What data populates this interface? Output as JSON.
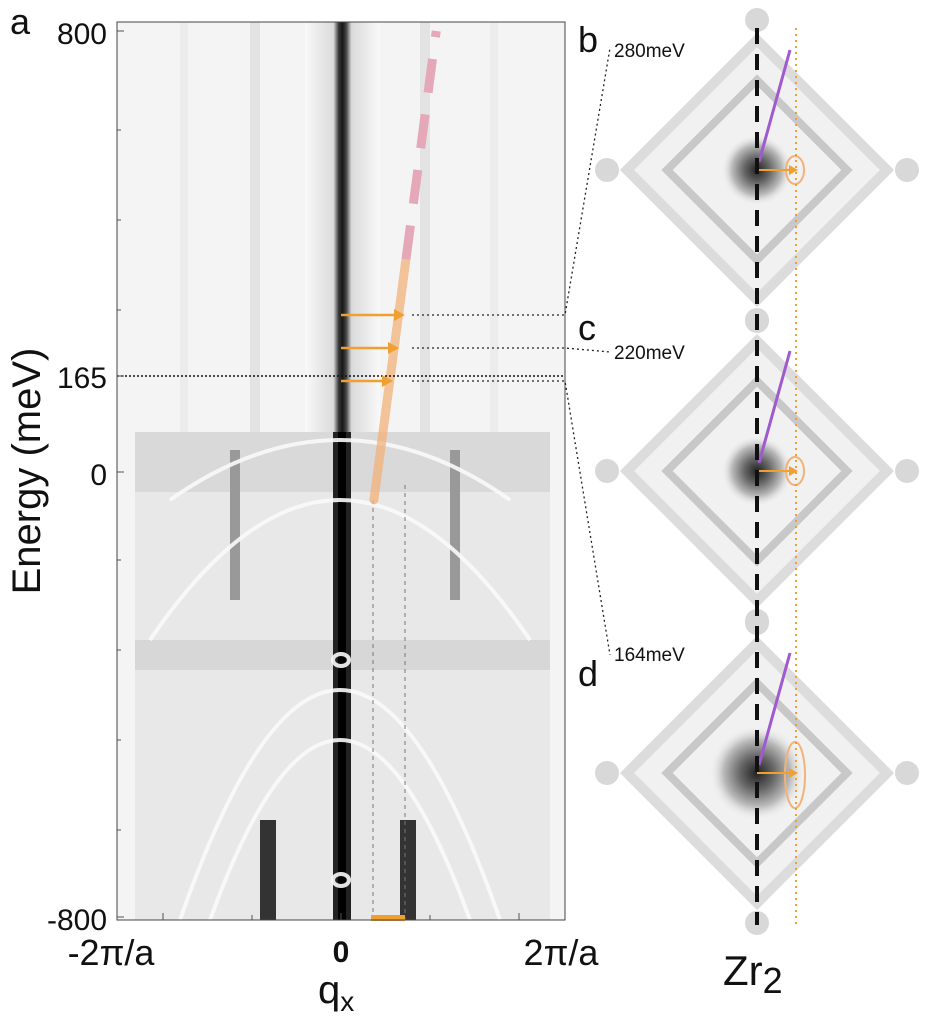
{
  "panel_labels": {
    "a": "a",
    "b": "b",
    "c": "c",
    "d": "d"
  },
  "axis": {
    "ylabel": "Energy (meV)",
    "xlabel": "q",
    "xlabel_sub": "x",
    "y_ticks": [
      "800",
      "165",
      "0",
      "-800"
    ],
    "x_ticks": [
      "-2π/a",
      "0",
      "2π/a"
    ]
  },
  "energy_labels": [
    "280meV",
    "220meV",
    "164meV"
  ],
  "zr_label": {
    "main": "Zr",
    "sub": "2"
  },
  "colors": {
    "orange": "#f0a030",
    "orange_band": "#f2b27a",
    "pink_dash": "#e4a8b8",
    "purple": "#a05ad0",
    "dark": "#111111"
  },
  "chart_data": [
    {
      "type": "heatmap",
      "description_series": "linecut intensity map",
      "ylabel": "Energy (meV)",
      "xlabel": "qx",
      "y_ticks": [
        800,
        165,
        0,
        -800
      ],
      "x_ticks": [
        "-2π/a",
        "0",
        "2π/a"
      ],
      "ylim": [
        -800,
        800
      ],
      "reference_energy_meV": 165,
      "arrow_energies_meV": [
        280,
        220,
        164
      ],
      "orange_dispersion_meV": [
        [
          0.37,
          -50
        ],
        [
          0.73,
          380
        ]
      ],
      "pink_dashed_meV": [
        [
          0.73,
          380
        ],
        [
          1.07,
          800
        ]
      ]
    },
    {
      "type": "heatmap",
      "panel": "b",
      "energy": "280meV"
    },
    {
      "type": "heatmap",
      "panel": "c",
      "energy": "220meV"
    },
    {
      "type": "heatmap",
      "panel": "d",
      "energy": "164meV"
    }
  ]
}
